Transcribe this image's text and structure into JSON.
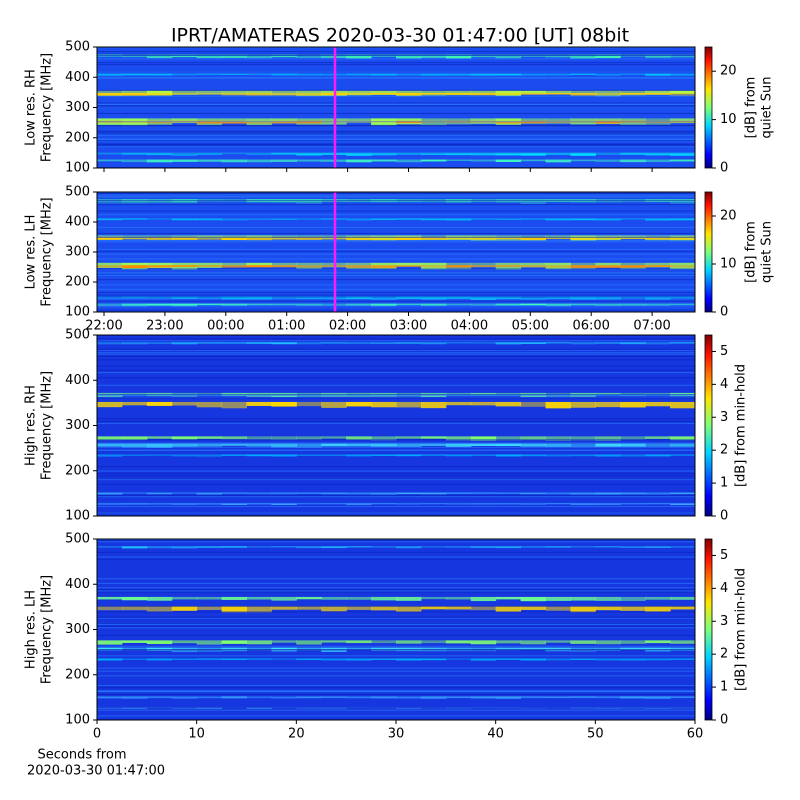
{
  "chart_data": [
    {
      "type": "heatmap",
      "title": "IPRT/AMATERAS 2020-03-30 01:47:00 [UT]   08bit",
      "ylabel": [
        "Low res. RH",
        "Frequency [MHz]"
      ],
      "ylim": [
        100,
        500
      ],
      "yticks": [
        100,
        200,
        300,
        400,
        500
      ],
      "clabel": [
        "[dB] from",
        "quiet Sun"
      ],
      "clim": [
        0,
        25
      ],
      "cticks": [
        0,
        10,
        20
      ],
      "colormap": "jet"
    },
    {
      "type": "heatmap",
      "ylabel": [
        "Low res. LH",
        "Frequency [MHz]"
      ],
      "ylim": [
        100,
        500
      ],
      "yticks": [
        100,
        200,
        300,
        400,
        500
      ],
      "xticks": [
        "22:00",
        "23:00",
        "00:00",
        "01:00",
        "02:00",
        "03:00",
        "04:00",
        "05:00",
        "06:00",
        "07:00"
      ],
      "clabel": [
        "[dB] from",
        "quiet Sun"
      ],
      "clim": [
        0,
        25
      ],
      "cticks": [
        0,
        10,
        20
      ],
      "colormap": "jet"
    },
    {
      "type": "heatmap",
      "ylabel": [
        "High res. RH",
        "Frequency [MHz]"
      ],
      "ylim": [
        100,
        500
      ],
      "yticks": [
        100,
        200,
        300,
        400,
        500
      ],
      "clabel": [
        "[dB] from min-hold"
      ],
      "clim": [
        0,
        5.5
      ],
      "cticks": [
        0,
        1,
        2,
        3,
        4,
        5
      ],
      "colormap": "jet"
    },
    {
      "type": "heatmap",
      "ylabel": [
        "High res. LH",
        "Frequency [MHz]"
      ],
      "ylim": [
        100,
        500
      ],
      "yticks": [
        100,
        200,
        300,
        400,
        500
      ],
      "xlim": [
        0,
        60
      ],
      "xticks": [
        0,
        10,
        20,
        30,
        40,
        50,
        60
      ],
      "xlabel": [
        "Seconds from",
        "2020-03-30 01:47:00"
      ],
      "clabel": [
        "[dB] from min-hold"
      ],
      "clim": [
        0,
        5.5
      ],
      "cticks": [
        0,
        1,
        2,
        3,
        4,
        5
      ],
      "colormap": "jet"
    }
  ]
}
